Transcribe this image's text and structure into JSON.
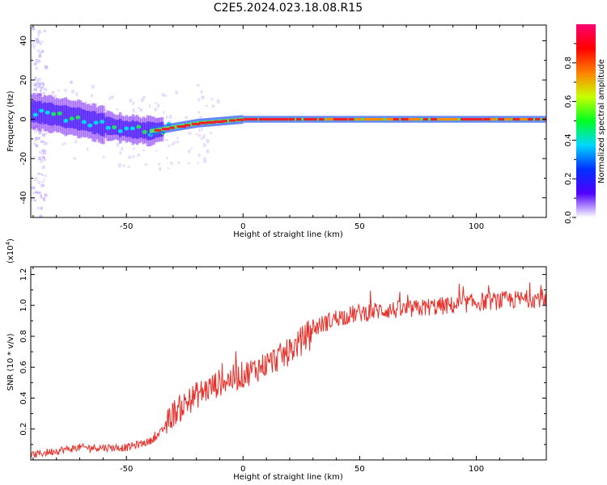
{
  "title": "C2E5.2024.023.18.08.R15",
  "chart_data": [
    {
      "type": "heatmap",
      "xlabel": "Height of straight line (km)",
      "ylabel": "Frequency (Hz)",
      "xlim": [
        -91,
        130
      ],
      "ylim": [
        -50,
        48
      ],
      "xticks": [
        -50,
        0,
        50,
        100
      ],
      "yticks": [
        -40,
        -20,
        0,
        20,
        40
      ],
      "ridge": [
        {
          "x": -90,
          "y": 4
        },
        {
          "x": -80,
          "y": 2
        },
        {
          "x": -70,
          "y": 0
        },
        {
          "x": -60,
          "y": -3
        },
        {
          "x": -50,
          "y": -5
        },
        {
          "x": -40,
          "y": -6
        },
        {
          "x": -30,
          "y": -4
        },
        {
          "x": -20,
          "y": -2
        },
        {
          "x": -10,
          "y": -1
        },
        {
          "x": 0,
          "y": 0
        },
        {
          "x": 50,
          "y": 0
        },
        {
          "x": 130,
          "y": 0
        }
      ],
      "colorbar": {
        "label": "Normalized spectral amplitude",
        "range": [
          0,
          1
        ],
        "ticks": [
          "0.0",
          "0.2",
          "0.4",
          "0.6",
          "0.8"
        ],
        "stops": [
          "#ffffff",
          "#5000ff",
          "#0030ff",
          "#00d8ff",
          "#00ff20",
          "#c8ff00",
          "#ff8000",
          "#ff0000",
          "#ff0070"
        ]
      }
    },
    {
      "type": "line",
      "xlabel": "Height of straight line (km)",
      "ylabel": "SNR (10 * v/v)",
      "multiplier_base": "(x10",
      "multiplier_exp": "4",
      "multiplier_close": ")",
      "xlim": [
        -91,
        130
      ],
      "ylim": [
        0,
        1.25
      ],
      "xticks": [
        -50,
        0,
        50,
        100
      ],
      "yticks": [
        "0.2",
        "0.4",
        "0.6",
        "0.8",
        "1.0",
        "1.2"
      ],
      "color": "#e8302a",
      "trend": [
        {
          "x": -91,
          "y": 0.03
        },
        {
          "x": -80,
          "y": 0.06
        },
        {
          "x": -70,
          "y": 0.08
        },
        {
          "x": -60,
          "y": 0.08
        },
        {
          "x": -50,
          "y": 0.08
        },
        {
          "x": -40,
          "y": 0.12
        },
        {
          "x": -35,
          "y": 0.18
        },
        {
          "x": -30,
          "y": 0.3
        },
        {
          "x": -20,
          "y": 0.42
        },
        {
          "x": -10,
          "y": 0.5
        },
        {
          "x": 0,
          "y": 0.55
        },
        {
          "x": 10,
          "y": 0.62
        },
        {
          "x": 20,
          "y": 0.7
        },
        {
          "x": 30,
          "y": 0.85
        },
        {
          "x": 40,
          "y": 0.92
        },
        {
          "x": 50,
          "y": 0.95
        },
        {
          "x": 60,
          "y": 0.97
        },
        {
          "x": 70,
          "y": 0.97
        },
        {
          "x": 80,
          "y": 0.99
        },
        {
          "x": 90,
          "y": 1.0
        },
        {
          "x": 100,
          "y": 1.02
        },
        {
          "x": 110,
          "y": 1.03
        },
        {
          "x": 120,
          "y": 1.04
        },
        {
          "x": 130,
          "y": 1.05
        }
      ]
    }
  ]
}
